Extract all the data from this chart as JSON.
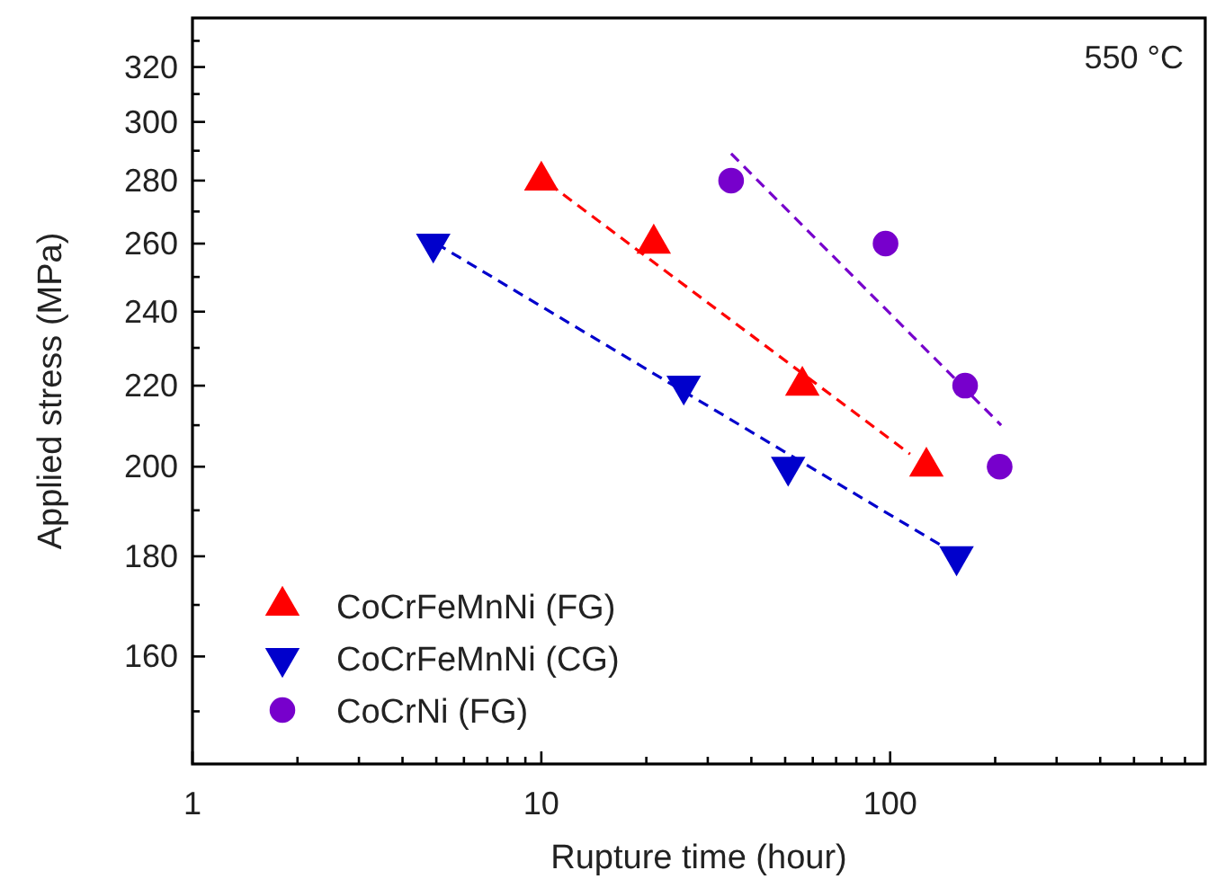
{
  "chart_data": {
    "type": "scatter",
    "xlabel": "Rupture time (hour)",
    "ylabel": "Applied stress (MPa)",
    "log": "xy",
    "xlim": [
      1,
      800
    ],
    "ylim": [
      141,
      339
    ],
    "xticks": [
      1,
      {
        "value": 2,
        "label": null
      },
      {
        "value": 3,
        "label": null
      },
      {
        "value": 4,
        "label": null
      },
      {
        "value": 5,
        "label": null
      },
      {
        "value": 6,
        "label": null
      },
      {
        "value": 7,
        "label": null
      },
      {
        "value": 8,
        "label": null
      },
      {
        "value": 9,
        "label": null
      },
      10,
      {
        "value": 20,
        "label": null
      },
      {
        "value": 30,
        "label": null
      },
      {
        "value": 40,
        "label": null
      },
      {
        "value": 50,
        "label": null
      },
      {
        "value": 60,
        "label": null
      },
      {
        "value": 70,
        "label": null
      },
      {
        "value": 80,
        "label": null
      },
      {
        "value": 90,
        "label": null
      },
      100,
      {
        "value": 200,
        "label": null
      },
      {
        "value": 300,
        "label": null
      },
      {
        "value": 400,
        "label": null
      },
      {
        "value": 500,
        "label": null
      },
      {
        "value": 600,
        "label": null
      },
      {
        "value": 700,
        "label": null
      }
    ],
    "yticks": [
      {
        "value": 150,
        "label": null
      },
      160,
      {
        "value": 170,
        "label": null
      },
      180,
      {
        "value": 190,
        "label": null
      },
      200,
      {
        "value": 210,
        "label": null
      },
      220,
      {
        "value": 230,
        "label": null
      },
      240,
      {
        "value": 250,
        "label": null
      },
      260,
      {
        "value": 270,
        "label": null
      },
      280,
      {
        "value": 290,
        "label": null
      },
      300,
      {
        "value": 310,
        "label": null
      },
      320,
      {
        "value": 330,
        "label": null
      }
    ],
    "grid": false,
    "legend": "bottom left",
    "annotations": [
      "550 °C"
    ],
    "series": [
      {
        "name": "CoCrFeMnNi (FG)",
        "color": "#ff0000",
        "marker": "triangle",
        "x": [
          10,
          21,
          56,
          127
        ],
        "values": [
          280,
          260,
          220,
          200
        ]
      },
      {
        "name": "CoCrFeMnNi (CG)",
        "color": "#0000cc",
        "marker": "triangle-down",
        "x": [
          4.9,
          25.6,
          51,
          155
        ],
        "values": [
          260,
          220,
          200,
          180
        ]
      },
      {
        "name": "CoCrNi (FG)",
        "color": "#7700cc",
        "marker": "circle",
        "x": [
          35,
          97,
          164,
          206
        ],
        "values": [
          280,
          260,
          220,
          200
        ]
      },
      {
        "type": "line",
        "color": "#ff0000",
        "line_style": "dashed",
        "marker": "none",
        "x": [
          10.5,
          114
        ],
        "values": [
          279,
          203
        ]
      },
      {
        "type": "line",
        "color": "#0000cc",
        "line_style": "dashed",
        "marker": "none",
        "x": [
          5,
          150
        ],
        "values": [
          260,
          181
        ]
      },
      {
        "type": "line",
        "color": "#7700cc",
        "line_style": "dashed",
        "marker": "none",
        "x": [
          35,
          208
        ],
        "values": [
          289,
          210
        ]
      }
    ]
  }
}
